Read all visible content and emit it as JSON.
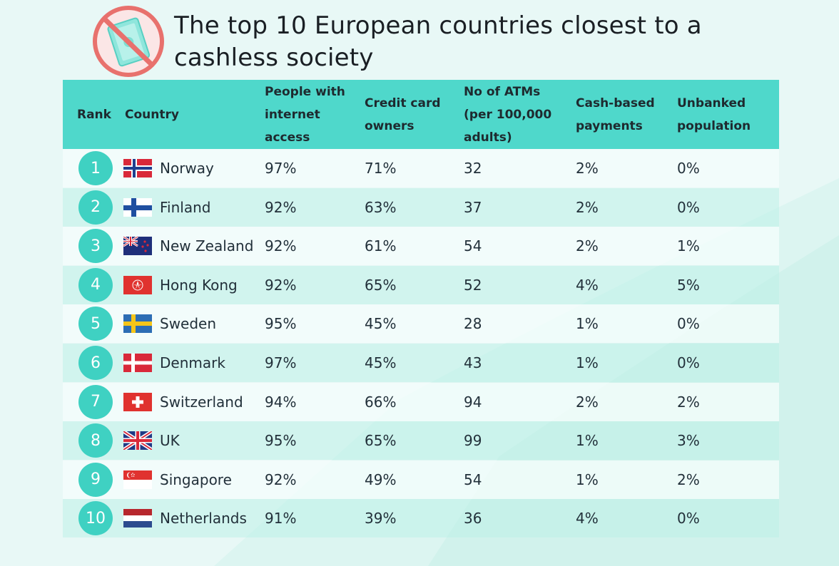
{
  "title": "The top 10 European countries closest to a cashless society",
  "icon": "no-cash-icon",
  "colors": {
    "header_bg": "#4fd8cb",
    "rank_circle": "#3fd1c2",
    "icon_red": "#e8716d"
  },
  "table": {
    "headers": [
      "Rank",
      "Country",
      "People with\ninternet\naccess",
      "Credit card\nowners",
      "No of ATMs\n(per 100,000\nadults)",
      "Cash-based\npayments",
      "Unbanked\npopulation"
    ],
    "rows": [
      {
        "rank": "1",
        "country": "Norway",
        "flag": "norway-flag",
        "internet": "97%",
        "credit": "71%",
        "atms": "32",
        "cash": "2%",
        "unbanked": "0%"
      },
      {
        "rank": "2",
        "country": "Finland",
        "flag": "finland-flag",
        "internet": "92%",
        "credit": "63%",
        "atms": "37",
        "cash": "2%",
        "unbanked": "0%"
      },
      {
        "rank": "3",
        "country": "New Zealand",
        "flag": "new-zealand-flag",
        "internet": "92%",
        "credit": "61%",
        "atms": "54",
        "cash": "2%",
        "unbanked": "1%"
      },
      {
        "rank": "4",
        "country": "Hong Kong",
        "flag": "hong-kong-flag",
        "internet": "92%",
        "credit": "65%",
        "atms": "52",
        "cash": "4%",
        "unbanked": "5%"
      },
      {
        "rank": "5",
        "country": "Sweden",
        "flag": "sweden-flag",
        "internet": "95%",
        "credit": "45%",
        "atms": "28",
        "cash": "1%",
        "unbanked": "0%"
      },
      {
        "rank": "6",
        "country": "Denmark",
        "flag": "denmark-flag",
        "internet": "97%",
        "credit": "45%",
        "atms": "43",
        "cash": "1%",
        "unbanked": "0%"
      },
      {
        "rank": "7",
        "country": "Switzerland",
        "flag": "switzerland-flag",
        "internet": "94%",
        "credit": "66%",
        "atms": "94",
        "cash": "2%",
        "unbanked": "2%"
      },
      {
        "rank": "8",
        "country": "UK",
        "flag": "uk-flag",
        "internet": "95%",
        "credit": "65%",
        "atms": "99",
        "cash": "1%",
        "unbanked": "3%"
      },
      {
        "rank": "9",
        "country": "Singapore",
        "flag": "singapore-flag",
        "internet": "92%",
        "credit": "49%",
        "atms": "54",
        "cash": "1%",
        "unbanked": "2%"
      },
      {
        "rank": "10",
        "country": "Netherlands",
        "flag": "netherlands-flag",
        "internet": "91%",
        "credit": "39%",
        "atms": "36",
        "cash": "4%",
        "unbanked": "0%"
      }
    ]
  },
  "chart_data": {
    "type": "table",
    "title": "The top 10 European countries closest to a cashless society",
    "columns": [
      "Rank",
      "Country",
      "People with internet access",
      "Credit card owners",
      "No of ATMs (per 100,000 adults)",
      "Cash-based payments",
      "Unbanked population"
    ],
    "rows": [
      [
        1,
        "Norway",
        "97%",
        "71%",
        32,
        "2%",
        "0%"
      ],
      [
        2,
        "Finland",
        "92%",
        "63%",
        37,
        "2%",
        "0%"
      ],
      [
        3,
        "New Zealand",
        "92%",
        "61%",
        54,
        "2%",
        "1%"
      ],
      [
        4,
        "Hong Kong",
        "92%",
        "65%",
        52,
        "4%",
        "5%"
      ],
      [
        5,
        "Sweden",
        "95%",
        "45%",
        28,
        "1%",
        "0%"
      ],
      [
        6,
        "Denmark",
        "97%",
        "45%",
        43,
        "1%",
        "0%"
      ],
      [
        7,
        "Switzerland",
        "94%",
        "66%",
        94,
        "2%",
        "2%"
      ],
      [
        8,
        "UK",
        "95%",
        "65%",
        99,
        "1%",
        "3%"
      ],
      [
        9,
        "Singapore",
        "92%",
        "49%",
        54,
        "1%",
        "2%"
      ],
      [
        10,
        "Netherlands",
        "91%",
        "39%",
        36,
        "4%",
        "0%"
      ]
    ]
  }
}
